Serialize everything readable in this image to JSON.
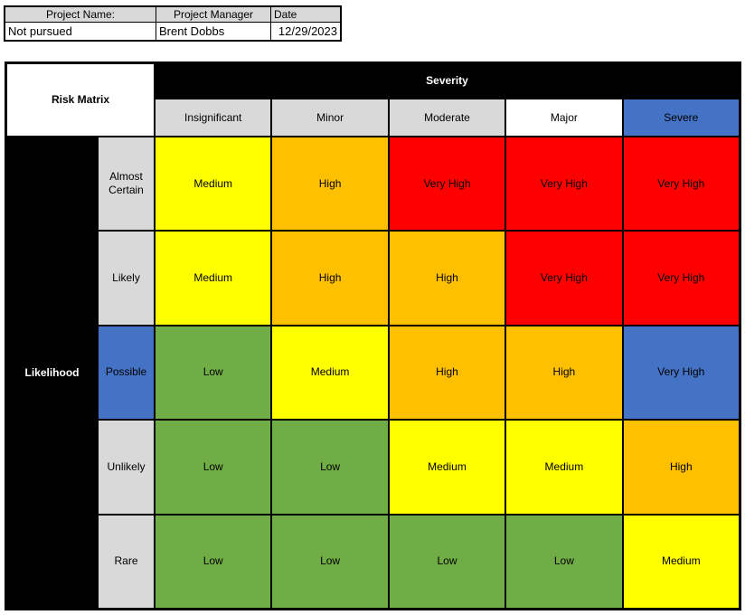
{
  "project_info": {
    "headers": [
      {
        "label": "Project Name:"
      },
      {
        "label": "Project Manager"
      },
      {
        "label": "Date"
      }
    ],
    "values": [
      {
        "label": "Not pursued"
      },
      {
        "label": "Brent Dobbs"
      },
      {
        "label": "12/29/2023"
      }
    ]
  },
  "matrix": {
    "title": "Risk Matrix",
    "severity_label": "Severity",
    "likelihood_label": "Likelihood",
    "severity_levels": [
      {
        "label": "Insignificant",
        "bg": "#D9D9D9",
        "fg": "#000000"
      },
      {
        "label": "Minor",
        "bg": "#D9D9D9",
        "fg": "#000000"
      },
      {
        "label": "Moderate",
        "bg": "#D9D9D9",
        "fg": "#000000"
      },
      {
        "label": "Major",
        "bg": "#FFFFFF",
        "fg": "#000000"
      },
      {
        "label": "Severe",
        "bg": "#4472C4",
        "fg": "#000000"
      }
    ],
    "likelihood_levels": [
      {
        "label": "Almost Certain",
        "bg": "#D9D9D9",
        "fg": "#000000"
      },
      {
        "label": "Likely",
        "bg": "#D9D9D9",
        "fg": "#000000"
      },
      {
        "label": "Possible",
        "bg": "#4472C4",
        "fg": "#000000"
      },
      {
        "label": "Unlikely",
        "bg": "#D9D9D9",
        "fg": "#000000"
      },
      {
        "label": "Rare",
        "bg": "#D9D9D9",
        "fg": "#000000"
      }
    ],
    "cells": [
      [
        {
          "label": "Medium",
          "bg": "#FFFF00"
        },
        {
          "label": "High",
          "bg": "#FFC000"
        },
        {
          "label": "Very High",
          "bg": "#FF0000"
        },
        {
          "label": "Very High",
          "bg": "#FF0000"
        },
        {
          "label": "Very High",
          "bg": "#FF0000"
        }
      ],
      [
        {
          "label": "Medium",
          "bg": "#FFFF00"
        },
        {
          "label": "High",
          "bg": "#FFC000"
        },
        {
          "label": "High",
          "bg": "#FFC000"
        },
        {
          "label": "Very High",
          "bg": "#FF0000"
        },
        {
          "label": "Very High",
          "bg": "#FF0000"
        }
      ],
      [
        {
          "label": "Low",
          "bg": "#70AD47"
        },
        {
          "label": "Medium",
          "bg": "#FFFF00"
        },
        {
          "label": "High",
          "bg": "#FFC000"
        },
        {
          "label": "High",
          "bg": "#FFC000"
        },
        {
          "label": "Very High",
          "bg": "#4472C4"
        }
      ],
      [
        {
          "label": "Low",
          "bg": "#70AD47"
        },
        {
          "label": "Low",
          "bg": "#70AD47"
        },
        {
          "label": "Medium",
          "bg": "#FFFF00"
        },
        {
          "label": "Medium",
          "bg": "#FFFF00"
        },
        {
          "label": "High",
          "bg": "#FFC000"
        }
      ],
      [
        {
          "label": "Low",
          "bg": "#70AD47"
        },
        {
          "label": "Low",
          "bg": "#70AD47"
        },
        {
          "label": "Low",
          "bg": "#70AD47"
        },
        {
          "label": "Low",
          "bg": "#70AD47"
        },
        {
          "label": "Medium",
          "bg": "#FFFF00"
        }
      ]
    ],
    "palette": {
      "low": "#70AD47",
      "medium": "#FFFF00",
      "high": "#FFC000",
      "very_high": "#FF0000",
      "very_high_severe": "#4472C4",
      "header_gray": "#D9D9D9",
      "band_black": "#000000"
    }
  }
}
